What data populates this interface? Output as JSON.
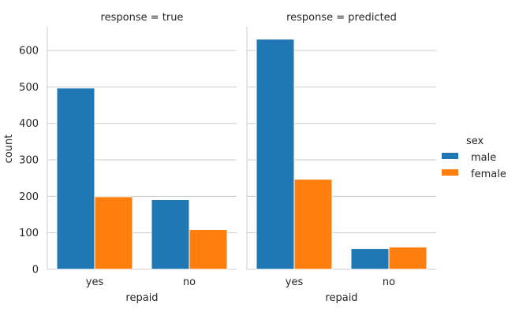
{
  "chart_data": {
    "type": "bar",
    "categories": [
      "yes",
      "no"
    ],
    "xlabel": "repaid",
    "ylabel": "count",
    "ylim": [
      0,
      665
    ],
    "yticks": [
      0,
      100,
      200,
      300,
      400,
      500,
      600
    ],
    "grid": true,
    "legend": {
      "title": "sex",
      "placement": "right",
      "entries": [
        {
          "name": "male",
          "color": "#1f77b4"
        },
        {
          "name": "female",
          "color": "#ff7f0e"
        }
      ]
    },
    "panels": [
      {
        "title": "response = true",
        "series": [
          {
            "name": "male",
            "values": [
              497,
              191
            ]
          },
          {
            "name": "female",
            "values": [
              199,
              109
            ]
          }
        ]
      },
      {
        "title": "response = predicted",
        "series": [
          {
            "name": "male",
            "values": [
              631,
              57
            ]
          },
          {
            "name": "female",
            "values": [
              247,
              61
            ]
          }
        ]
      }
    ]
  }
}
